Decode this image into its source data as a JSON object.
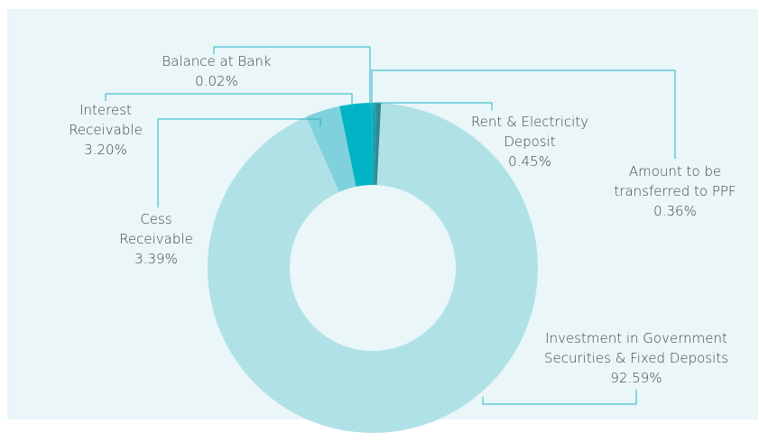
{
  "chart_data": {
    "type": "donut",
    "categories": [
      "Amount to be transferred to PPF",
      "Rent & Electricity Deposit",
      "Investment in Government Securities & Fixed Deposits",
      "Cess Receivable",
      "Interest Receivable",
      "Balance at Bank"
    ],
    "values": [
      0.36,
      0.45,
      92.59,
      3.39,
      3.2,
      0.02
    ],
    "value_labels": [
      "0.36%",
      "0.45%",
      "92.59%",
      "3.39%",
      "3.20%",
      "0.02%"
    ],
    "colors": [
      "#1a9fad",
      "#2e8a92",
      "#b0e1e7",
      "#7fd1dc",
      "#00b4c6",
      "#0aa8b8"
    ]
  }
}
